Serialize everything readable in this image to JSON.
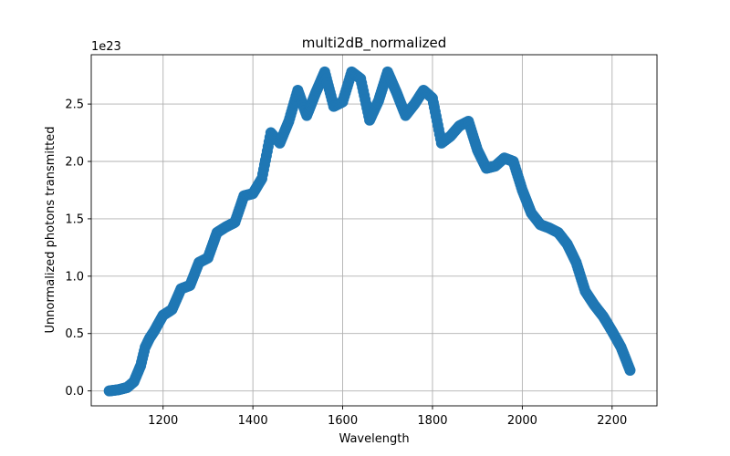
{
  "chart_data": {
    "type": "scatter",
    "title": "multi2dB_normalized",
    "xlabel": "Wavelength",
    "ylabel": "Unnormalized photons transmitted",
    "y_offset_label": "1e23",
    "xlim": [
      1040,
      2300
    ],
    "ylim": [
      -0.13,
      2.93
    ],
    "x_ticks": [
      1200,
      1400,
      1600,
      1800,
      2000,
      2200
    ],
    "y_ticks": [
      0.0,
      0.5,
      1.0,
      1.5,
      2.0,
      2.5
    ],
    "x_tick_labels": [
      "1200",
      "1400",
      "1600",
      "1800",
      "2000",
      "2200"
    ],
    "y_tick_labels": [
      "0.0",
      "0.5",
      "1.0",
      "1.5",
      "2.0",
      "2.5"
    ],
    "grid": true,
    "marker_color": "#1f77b4",
    "series": [
      {
        "x": [
          1080,
          1100,
          1120,
          1135,
          1150,
          1160,
          1170,
          1180,
          1200,
          1220,
          1240,
          1260,
          1280,
          1300,
          1320,
          1340,
          1360,
          1380,
          1400,
          1420,
          1440,
          1460,
          1480,
          1500,
          1520,
          1540,
          1560,
          1580,
          1600,
          1620,
          1640,
          1660,
          1680,
          1700,
          1720,
          1740,
          1760,
          1780,
          1800,
          1820,
          1840,
          1860,
          1880,
          1900,
          1920,
          1940,
          1960,
          1980,
          2000,
          2020,
          2040,
          2060,
          2080,
          2100,
          2120,
          2140,
          2160,
          2180,
          2200,
          2220,
          2240
        ],
        "y": [
          0.0,
          0.01,
          0.03,
          0.08,
          0.22,
          0.38,
          0.46,
          0.52,
          0.66,
          0.71,
          0.89,
          0.92,
          1.12,
          1.16,
          1.38,
          1.43,
          1.47,
          1.7,
          1.72,
          1.85,
          2.25,
          2.16,
          2.35,
          2.62,
          2.4,
          2.6,
          2.78,
          2.48,
          2.52,
          2.78,
          2.72,
          2.36,
          2.53,
          2.78,
          2.6,
          2.4,
          2.5,
          2.62,
          2.55,
          2.16,
          2.22,
          2.31,
          2.35,
          2.1,
          1.94,
          1.96,
          2.03,
          2.0,
          1.75,
          1.55,
          1.45,
          1.42,
          1.38,
          1.28,
          1.12,
          0.87,
          0.75,
          0.65,
          0.52,
          0.38,
          0.18
        ]
      }
    ]
  }
}
